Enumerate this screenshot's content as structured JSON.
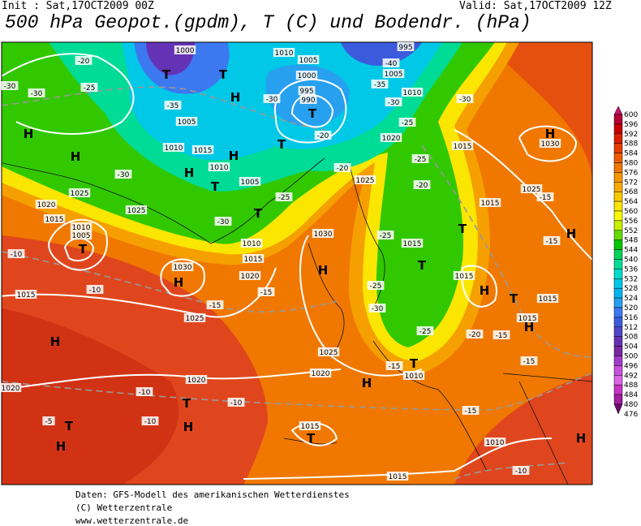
{
  "header": {
    "init": "Init : Sat,17OCT2009 00Z",
    "valid": "Valid: Sat,17OCT2009 12Z",
    "title": "500 hPa Geopot.(gpdm), T (C) und Bodendr. (hPa)"
  },
  "legend": {
    "levels": [
      600,
      596,
      592,
      588,
      584,
      580,
      576,
      572,
      568,
      564,
      560,
      556,
      552,
      548,
      544,
      540,
      536,
      532,
      528,
      524,
      520,
      516,
      512,
      508,
      504,
      500,
      496,
      492,
      488,
      484,
      480,
      476
    ],
    "colors": [
      "#c8146e",
      "#b40032",
      "#c80000",
      "#dc1e00",
      "#e63c00",
      "#f05a00",
      "#f07800",
      "#f59600",
      "#faaa00",
      "#fac800",
      "#fae600",
      "#fafa00",
      "#c8f000",
      "#64dc00",
      "#00c800",
      "#00d25a",
      "#00dc96",
      "#00dcc8",
      "#00c8e6",
      "#00b4f0",
      "#28a0f0",
      "#3c78f0",
      "#3c5adc",
      "#5046c8",
      "#6432b4",
      "#7828a0",
      "#a03cc8",
      "#c850dc",
      "#dc64e6",
      "#c832c8",
      "#a01ea0",
      "#6e0a6e"
    ]
  },
  "map": {
    "labels": [
      "1000",
      "1010",
      "995",
      "-20",
      "T",
      "T",
      "1005",
      "1000",
      "-40",
      "1005",
      "-30",
      "-30",
      "-25",
      "H",
      "-35",
      "-30",
      "995",
      "990",
      "T",
      "-35",
      "1010",
      "-30",
      "-30",
      "1005",
      "H",
      "H",
      "1010",
      "1015",
      "H",
      "T",
      "-20",
      "-25",
      "1020",
      "1015",
      "H",
      "1030",
      "1010",
      "H",
      "-30",
      "T",
      "1005",
      "-20",
      "1025",
      "-25",
      "-20",
      "1025",
      "1020",
      "1025",
      "T",
      "-25",
      "1015",
      "1025",
      "-15",
      "1015",
      "1010",
      "1005",
      "T",
      "-30",
      "1030",
      "-25",
      "1015",
      "T",
      "-15",
      "H",
      "-10",
      "1030",
      "H",
      "1010",
      "1015",
      "1020",
      "H",
      "T",
      "1015",
      "-10",
      "1015",
      "-15",
      "H",
      "T",
      "1015",
      "-15",
      "1025",
      "-25",
      "-30",
      "1015",
      "H",
      "H",
      "-25",
      "-20",
      "-15",
      "1025",
      "T",
      "1010",
      "-15",
      "-15",
      "1020",
      "1020",
      "H",
      "1020",
      "-10",
      "T",
      "-10",
      "-5",
      "-10",
      "T",
      "H",
      "1015",
      "T",
      "-15",
      "H",
      "H",
      "1010",
      "-10",
      "1015"
    ]
  },
  "footer": {
    "lines": [
      "Daten: GFS-Modell des amerikanischen Wetterdienstes",
      "(C) Wetterzentrale",
      "www.wetterzentrale.de"
    ]
  }
}
